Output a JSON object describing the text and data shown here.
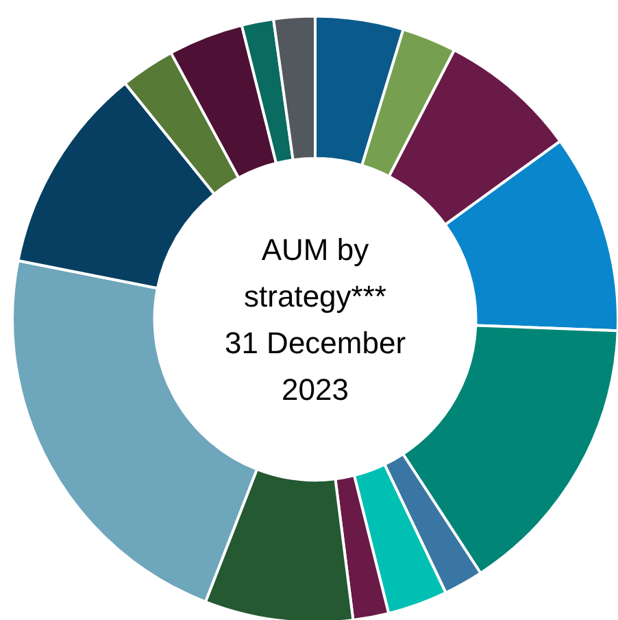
{
  "chart_data": {
    "type": "donut",
    "title": "AUM by\nstrategy***\n31 December\n2023",
    "categories": [
      null,
      null,
      null,
      null,
      null,
      null,
      null,
      null,
      null,
      null,
      null,
      null,
      null,
      null,
      null
    ],
    "values": [
      4.7,
      2.9,
      7.4,
      10.6,
      15.2,
      2.1,
      3.2,
      1.9,
      7.9,
      22.2,
      11.1,
      2.9,
      4.0,
      1.7,
      2.2
    ],
    "colors": [
      "#0b5a8c",
      "#76a04f",
      "#6a1a47",
      "#0a87cc",
      "#008576",
      "#3a76a3",
      "#00c0b4",
      "#6a1a47",
      "#245932",
      "#6ea6bb",
      "#063f61",
      "#577a37",
      "#4e1034",
      "#0a6b60",
      "#53585e"
    ]
  }
}
